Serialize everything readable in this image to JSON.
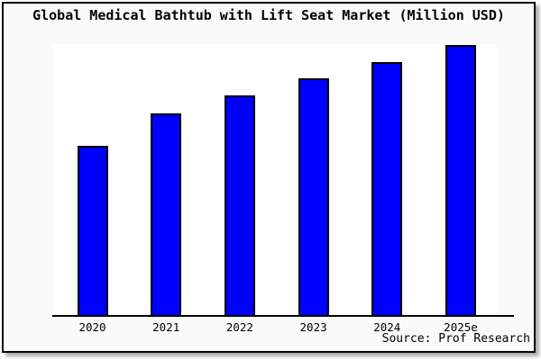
{
  "chart": {
    "title": "Global Medical Bathtub with Lift Seat Market (Million USD)",
    "source": "Source: Prof Research",
    "colors": {
      "bar_fill": "#0000ff",
      "bar_border": "#000000",
      "frame_border": "#000000",
      "frame_background": "#fafafa",
      "plot_background": "#ffffff",
      "text": "#000000"
    }
  },
  "chart_data": {
    "type": "bar",
    "title": "Global Medical Bathtub with Lift Seat Market (Million USD)",
    "categories": [
      "2020",
      "2021",
      "2022",
      "2023",
      "2024",
      "2025e"
    ],
    "values": [
      189,
      225,
      245,
      264,
      282,
      301
    ],
    "value_note": "No y-axis scale is displayed in the figure; values are relative bar heights (pixels), proportional to market size.",
    "xlabel": "",
    "ylabel": "",
    "grid": false,
    "legend": false,
    "y_axis_shown": false,
    "source": "Source: Prof Research"
  }
}
